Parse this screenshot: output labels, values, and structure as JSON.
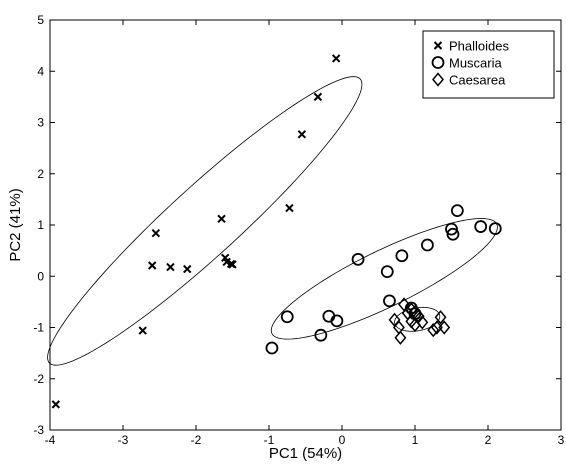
{
  "chart_data": {
    "type": "scatter",
    "xlabel": "PC1 (54%)",
    "ylabel": "PC2 (41%)",
    "xlim": [
      -4,
      3
    ],
    "ylim": [
      -3,
      5
    ],
    "x_ticks": [
      "-4",
      "-3",
      "-2",
      "-1",
      "0",
      "1",
      "2",
      "3"
    ],
    "y_ticks": [
      "-3",
      "-2",
      "-1",
      "0",
      "1",
      "2",
      "3",
      "4",
      "5"
    ],
    "grid": false,
    "legend_position": "top-right",
    "series": [
      {
        "name": "Phalloides",
        "marker": "x",
        "points": [
          [
            -0.08,
            4.25
          ],
          [
            -0.33,
            3.5
          ],
          [
            -0.55,
            2.77
          ],
          [
            -0.72,
            1.33
          ],
          [
            -1.65,
            1.12
          ],
          [
            -2.55,
            0.84
          ],
          [
            -2.6,
            0.21
          ],
          [
            -2.35,
            0.18
          ],
          [
            -2.12,
            0.14
          ],
          [
            -1.6,
            0.36
          ],
          [
            -1.58,
            0.28
          ],
          [
            -1.52,
            0.24
          ],
          [
            -1.5,
            0.23
          ],
          [
            -2.73,
            -1.06
          ],
          [
            -3.92,
            -2.5
          ]
        ]
      },
      {
        "name": "Muscaria",
        "marker": "o",
        "points": [
          [
            1.58,
            1.28
          ],
          [
            1.9,
            0.97
          ],
          [
            2.1,
            0.93
          ],
          [
            1.5,
            0.92
          ],
          [
            1.52,
            0.82
          ],
          [
            1.17,
            0.61
          ],
          [
            0.82,
            0.4
          ],
          [
            0.22,
            0.33
          ],
          [
            0.62,
            0.09
          ],
          [
            0.65,
            -0.48
          ],
          [
            -0.75,
            -0.79
          ],
          [
            -0.18,
            -0.78
          ],
          [
            -0.07,
            -0.87
          ],
          [
            -0.29,
            -1.15
          ],
          [
            -0.96,
            -1.4
          ],
          [
            0.95,
            -0.62
          ],
          [
            1.0,
            -0.73
          ]
        ]
      },
      {
        "name": "Caesarea",
        "marker": "diamond",
        "points": [
          [
            0.85,
            -0.55
          ],
          [
            0.95,
            -0.65
          ],
          [
            1.0,
            -0.7
          ],
          [
            1.05,
            -0.78
          ],
          [
            0.9,
            -0.72
          ],
          [
            0.72,
            -0.85
          ],
          [
            0.95,
            -0.88
          ],
          [
            1.1,
            -0.9
          ],
          [
            0.78,
            -1.0
          ],
          [
            1.35,
            -0.8
          ],
          [
            1.3,
            -1.0
          ],
          [
            1.25,
            -1.05
          ],
          [
            1.4,
            -1.0
          ],
          [
            0.8,
            -1.2
          ],
          [
            1.0,
            -0.95
          ]
        ]
      }
    ],
    "ellipses": [
      {
        "center": [
          -1.88,
          1.08
        ],
        "semi_axes": [
          3.5,
          0.56
        ],
        "angle_deg": 53
      },
      {
        "center": [
          0.58,
          -0.05
        ],
        "semi_axes": [
          1.88,
          0.5
        ],
        "angle_deg": 36
      },
      {
        "center": [
          1.03,
          -0.84
        ],
        "semi_axes": [
          0.32,
          0.22
        ],
        "angle_deg": 20
      }
    ]
  }
}
